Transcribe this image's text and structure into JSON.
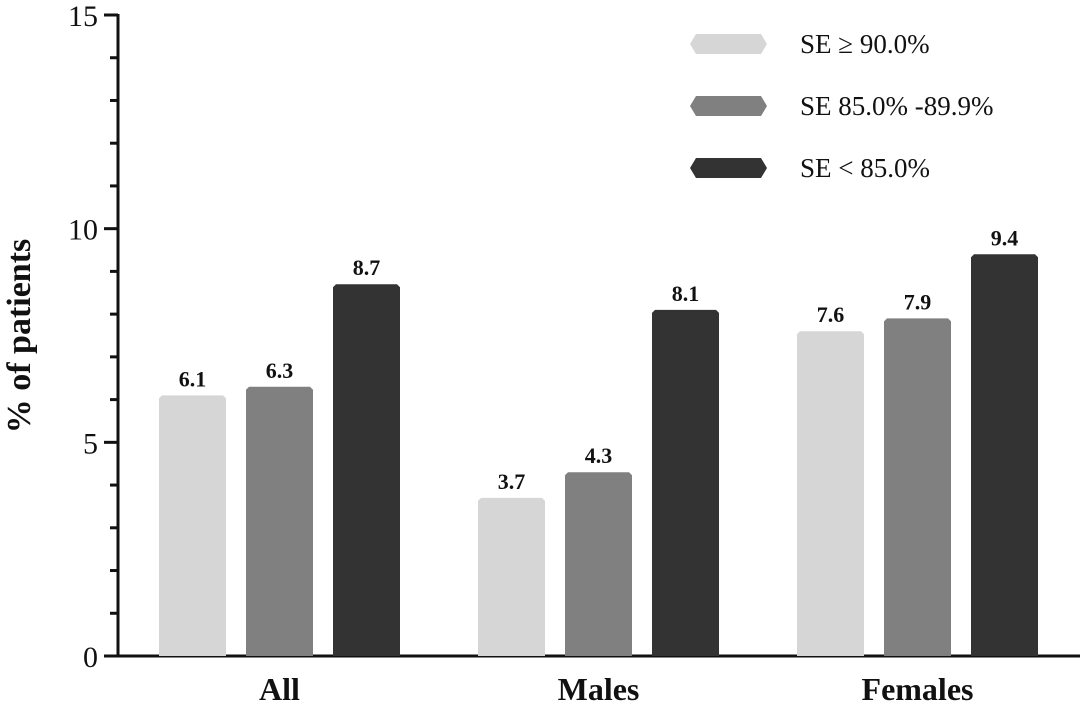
{
  "chart_data": {
    "type": "bar",
    "title": "",
    "xlabel": "",
    "ylabel": "% of patients",
    "ylim": [
      0,
      15
    ],
    "yticks": [
      "0",
      "5",
      "10",
      "15"
    ],
    "categories": [
      "All",
      "Males",
      "Females"
    ],
    "series": [
      {
        "name": "SE ≥ 90.0%",
        "color": "#d6d6d6",
        "values": [
          6.1,
          3.7,
          7.6
        ],
        "labels": [
          "6.1",
          "3.7",
          "7.6"
        ]
      },
      {
        "name": "SE 85.0% -89.9%",
        "color": "#808080",
        "values": [
          6.3,
          4.3,
          7.9
        ],
        "labels": [
          "6.3",
          "4.3",
          "7.9"
        ]
      },
      {
        "name": "SE  < 85.0%",
        "color": "#333333",
        "values": [
          8.7,
          8.1,
          9.4
        ],
        "labels": [
          "8.7",
          "8.1",
          "9.4"
        ]
      }
    ],
    "legend_position": "top-right",
    "grid": false
  }
}
